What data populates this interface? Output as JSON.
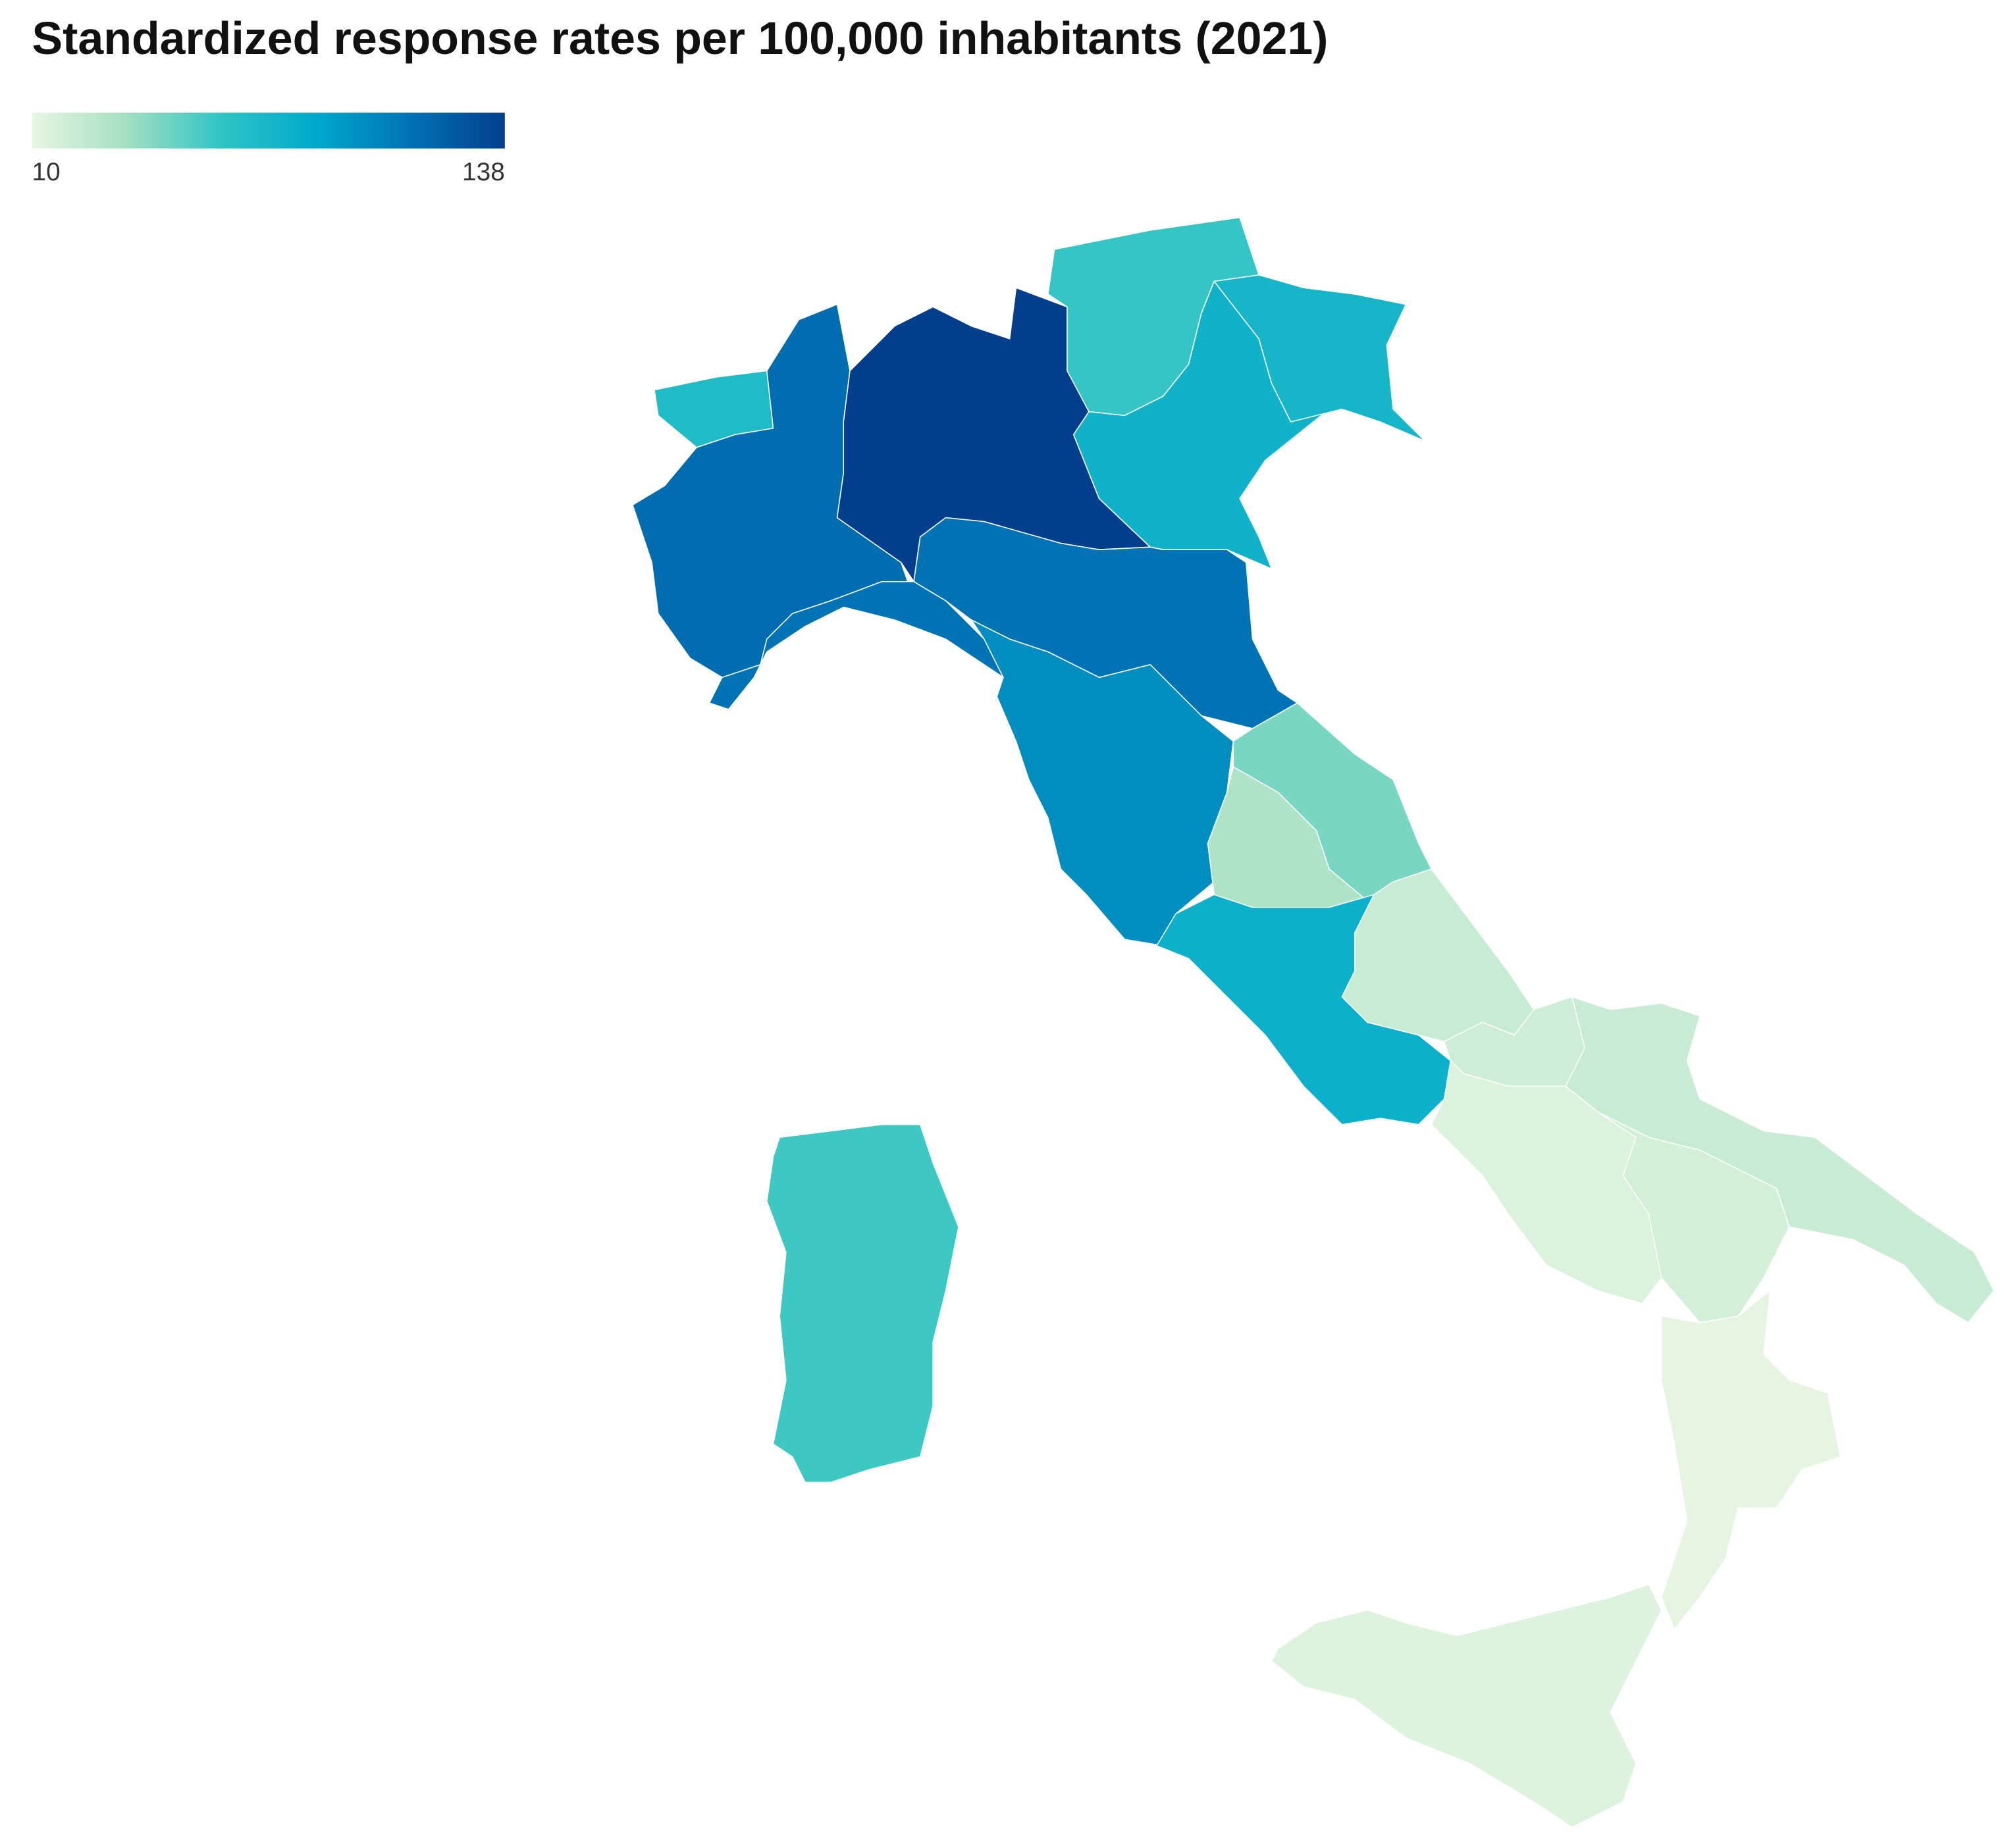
{
  "chart_data": {
    "type": "choropleth",
    "title": "Standardized response rates per 100,000 inhabitants (2021)",
    "zlim": [
      10,
      138
    ],
    "zticks": [
      10,
      138
    ],
    "colorscale": [
      "#e8f6e3",
      "#a3e0c1",
      "#2fc4c4",
      "#00a9cc",
      "#0072b4",
      "#033f8c"
    ],
    "values": [
      70,
      115,
      138,
      60,
      78,
      75,
      112,
      112,
      100,
      45,
      32,
      80,
      22,
      20,
      15,
      22,
      18,
      11,
      14,
      58
    ]
  }
}
